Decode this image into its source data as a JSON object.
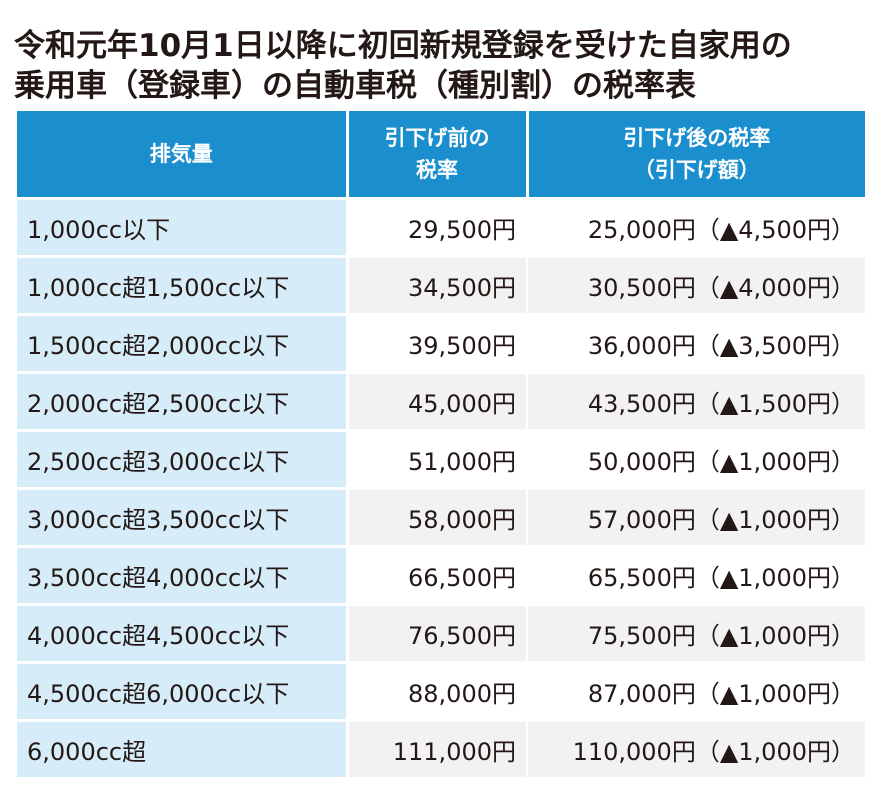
{
  "title": {
    "line1": "令和元年10月1日以降に初回新規登録を受けた自家用の",
    "line2": "乗用車（登録車）の自動車税（種別割）の税率表"
  },
  "colors": {
    "header_bg": "#1b8fce",
    "first_col_bg": "#d6ecf9",
    "header_text": "#ffffff",
    "body_text": "#231815"
  },
  "table": {
    "headers": {
      "displacement": "排気量",
      "before_line1": "引下げ前の",
      "before_line2": "税率",
      "after_line1": "引下げ後の税率",
      "after_line2": "（引下げ額）"
    },
    "rows": [
      {
        "displacement": "1,000cc以下",
        "before": "29,500円",
        "after": "25,000円（▲4,500円）"
      },
      {
        "displacement": "1,000cc超1,500cc以下",
        "before": "34,500円",
        "after": "30,500円（▲4,000円）"
      },
      {
        "displacement": "1,500cc超2,000cc以下",
        "before": "39,500円",
        "after": "36,000円（▲3,500円）"
      },
      {
        "displacement": "2,000cc超2,500cc以下",
        "before": "45,000円",
        "after": "43,500円（▲1,500円）"
      },
      {
        "displacement": "2,500cc超3,000cc以下",
        "before": "51,000円",
        "after": "50,000円（▲1,000円）"
      },
      {
        "displacement": "3,000cc超3,500cc以下",
        "before": "58,000円",
        "after": "57,000円（▲1,000円）"
      },
      {
        "displacement": "3,500cc超4,000cc以下",
        "before": "66,500円",
        "after": "65,500円（▲1,000円）"
      },
      {
        "displacement": "4,000cc超4,500cc以下",
        "before": "76,500円",
        "after": "75,500円（▲1,000円）"
      },
      {
        "displacement": "4,500cc超6,000cc以下",
        "before": "88,000円",
        "after": "87,000円（▲1,000円）"
      },
      {
        "displacement": "6,000cc超",
        "before": "111,000円",
        "after": "110,000円（▲1,000円）"
      }
    ]
  }
}
